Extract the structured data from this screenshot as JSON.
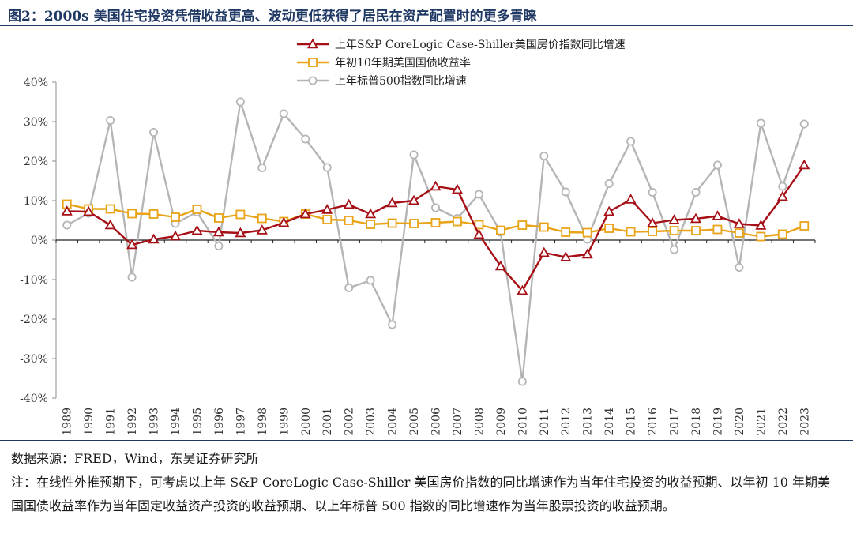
{
  "title": "图2：2000s 美国住宅投资凭借收益更高、波动更低获得了居民在资产配置时的更多青睐",
  "chart_data": {
    "type": "line",
    "categories": [
      "1989",
      "1990",
      "1991",
      "1992",
      "1993",
      "1994",
      "1995",
      "1996",
      "1997",
      "1998",
      "1999",
      "2000",
      "2001",
      "2002",
      "2003",
      "2004",
      "2005",
      "2006",
      "2007",
      "2008",
      "2009",
      "2010",
      "2011",
      "2012",
      "2013",
      "2014",
      "2015",
      "2016",
      "2017",
      "2018",
      "2019",
      "2020",
      "2021",
      "2022",
      "2023"
    ],
    "ylim": [
      -40,
      40
    ],
    "yticks": [
      -40,
      -30,
      -20,
      -10,
      0,
      10,
      20,
      30,
      40
    ],
    "ytick_labels": [
      "-40%",
      "-30%",
      "-20%",
      "-10%",
      "0%",
      "10%",
      "20%",
      "30%",
      "40%"
    ],
    "legend_position": "top-right",
    "series": [
      {
        "name": "上年S&P CoreLogic  Case-Shiller美国房价指数同比增速",
        "color": "#a50f15",
        "marker": "triangle",
        "values": [
          7.3,
          7.2,
          3.8,
          -1.2,
          0.2,
          1.0,
          2.4,
          2.0,
          1.8,
          2.5,
          4.4,
          6.6,
          7.7,
          9.0,
          6.6,
          9.4,
          10.0,
          13.6,
          12.8,
          1.4,
          -6.6,
          -12.8,
          -3.2,
          -4.3,
          -3.6,
          7.2,
          10.3,
          4.3,
          5.1,
          5.4,
          6.1,
          4.1,
          3.7,
          11.0,
          19.0
        ]
      },
      {
        "name": "年初10年期美国国债收益率",
        "color": "#e8a316",
        "marker": "square",
        "values": [
          9.1,
          7.9,
          7.9,
          6.7,
          6.6,
          5.8,
          7.8,
          5.6,
          6.5,
          5.5,
          4.7,
          6.6,
          5.2,
          5.0,
          4.0,
          4.3,
          4.2,
          4.4,
          4.7,
          3.9,
          2.5,
          3.8,
          3.3,
          2.0,
          1.9,
          3.0,
          2.1,
          2.2,
          2.4,
          2.4,
          2.7,
          1.8,
          0.9,
          1.5,
          3.6
        ]
      },
      {
        "name": "上年标普500指数同比增速",
        "color": "#b5b5b5",
        "marker": "circle",
        "values": [
          3.8,
          6.8,
          30.3,
          -9.4,
          27.3,
          4.2,
          7.1,
          -1.5,
          35.0,
          18.3,
          32.0,
          25.6,
          18.4,
          -12.1,
          -10.2,
          -21.4,
          21.6,
          8.2,
          5.5,
          11.6,
          2.0,
          -35.8,
          21.3,
          12.2,
          0.2,
          14.3,
          25.0,
          12.1,
          -2.4,
          12.1,
          19.0,
          -6.9,
          29.6,
          13.6,
          29.4
        ]
      }
    ]
  },
  "footer": {
    "source": "数据来源：FRED，Wind，东吴证券研究所",
    "note": "注：在线性外推预期下，可考虑以上年 S&P CoreLogic Case-Shiller 美国房价指数的同比增速作为当年住宅投资的收益预期、以年初 10 年期美国国债收益率作为当年固定收益资产投资的收益预期、以上年标普 500 指数的同比增速作为当年股票投资的收益预期。"
  }
}
